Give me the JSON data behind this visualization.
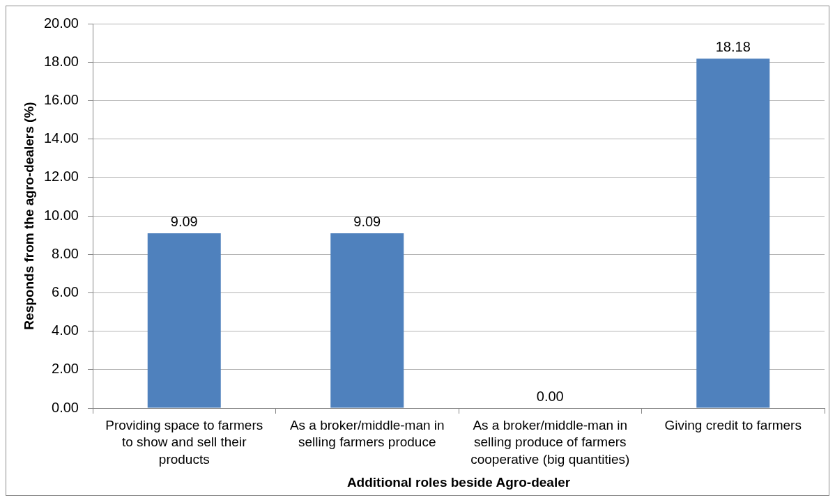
{
  "chart_data": {
    "type": "bar",
    "xlabel": "Additional roles beside Agro-dealer",
    "ylabel": "Responds from the agro-dealers (%)",
    "categories": [
      "Providing space to farmers to show and sell their products",
      "As a broker/middle-man in selling farmers produce",
      "As a broker/middle-man in selling produce of farmers cooperative (big quantities)",
      "Giving credit to farmers"
    ],
    "values": [
      9.09,
      9.09,
      0,
      18.18
    ],
    "color": "#4f81bd",
    "value_labels": [
      "9.09",
      "9.09",
      "0.00",
      "18.18"
    ],
    "ylim": [
      0,
      20
    ],
    "yticks": [
      {
        "value": 0,
        "label": "0.00"
      },
      {
        "value": 2,
        "label": "2.00"
      },
      {
        "value": 4,
        "label": "4.00"
      },
      {
        "value": 6,
        "label": "6.00"
      },
      {
        "value": 8,
        "label": "8.00"
      },
      {
        "value": 10,
        "label": "10.00"
      },
      {
        "value": 12,
        "label": "12.00"
      },
      {
        "value": 14,
        "label": "14.00"
      },
      {
        "value": 16,
        "label": "16.00"
      },
      {
        "value": 18,
        "label": "18.00"
      },
      {
        "value": 20,
        "label": "20.00"
      }
    ],
    "grid": "y"
  }
}
